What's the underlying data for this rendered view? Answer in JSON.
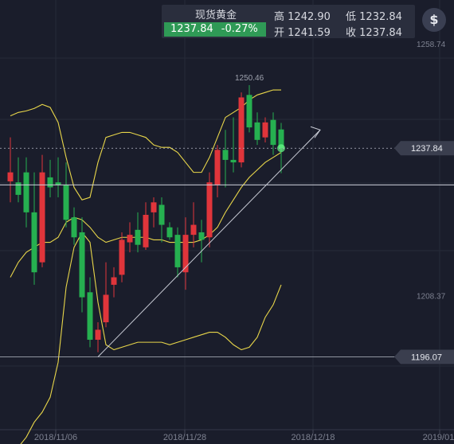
{
  "quote": {
    "name": "现货黄金",
    "price": "1237.84",
    "change": "-0.27%",
    "high_label": "高",
    "high": "1242.90",
    "low_label": "低",
    "low": "1232.84",
    "open_label": "开",
    "open": "1241.59",
    "close_label": "收",
    "close": "1237.84"
  },
  "dollar_icon": "dollar-icon",
  "colors": {
    "up": "#e0353b",
    "down": "#26b050",
    "bollinger": "#e8d64a",
    "background": "#1a1d2b"
  },
  "chart_data": {
    "type": "candlestick",
    "y_axis_ticks": [
      "1258.74",
      "1208.37"
    ],
    "x_axis_ticks": [
      "2018/11/06",
      "2018/11/28",
      "2018/12/18",
      "2019/01/"
    ],
    "ylim": [
      1181.5,
      1267.5
    ],
    "grid": true,
    "horizontal_levels": [
      {
        "value": 1237.84,
        "label": "1237.84"
      },
      {
        "value": 1196.07,
        "label": "1196.07"
      }
    ],
    "reference_line_value": 1230.5,
    "max_annotation": "1250.46",
    "candles": [
      {
        "o": 1231.2,
        "h": 1240.0,
        "l": 1227.0,
        "c": 1233.0
      },
      {
        "o": 1231.0,
        "h": 1236.0,
        "l": 1227.0,
        "c": 1228.5
      },
      {
        "o": 1233.0,
        "h": 1236.0,
        "l": 1222.0,
        "c": 1225.0
      },
      {
        "o": 1225.0,
        "h": 1233.0,
        "l": 1210.5,
        "c": 1213.0
      },
      {
        "o": 1215.0,
        "h": 1236.5,
        "l": 1214.0,
        "c": 1233.0
      },
      {
        "o": 1232.0,
        "h": 1235.5,
        "l": 1228.0,
        "c": 1230.0
      },
      {
        "o": 1231.0,
        "h": 1236.0,
        "l": 1228.0,
        "c": 1230.5
      },
      {
        "o": 1230.5,
        "h": 1235.0,
        "l": 1222.0,
        "c": 1223.5
      },
      {
        "o": 1224.0,
        "h": 1226.0,
        "l": 1218.5,
        "c": 1220.0
      },
      {
        "o": 1221.0,
        "h": 1224.0,
        "l": 1205.0,
        "c": 1208.0
      },
      {
        "o": 1209.0,
        "h": 1212.0,
        "l": 1198.0,
        "c": 1199.5
      },
      {
        "o": 1199.5,
        "h": 1203.0,
        "l": 1197.0,
        "c": 1201.5
      },
      {
        "o": 1203.0,
        "h": 1215.0,
        "l": 1202.0,
        "c": 1208.5
      },
      {
        "o": 1210.5,
        "h": 1214.0,
        "l": 1208.0,
        "c": 1212.0
      },
      {
        "o": 1212.5,
        "h": 1221.0,
        "l": 1211.0,
        "c": 1219.5
      },
      {
        "o": 1219.0,
        "h": 1223.0,
        "l": 1217.0,
        "c": 1220.5
      },
      {
        "o": 1221.5,
        "h": 1225.0,
        "l": 1217.0,
        "c": 1218.5
      },
      {
        "o": 1218.0,
        "h": 1227.0,
        "l": 1217.5,
        "c": 1224.5
      },
      {
        "o": 1225.0,
        "h": 1228.0,
        "l": 1222.0,
        "c": 1227.0
      },
      {
        "o": 1226.5,
        "h": 1228.0,
        "l": 1219.0,
        "c": 1222.5
      },
      {
        "o": 1222.0,
        "h": 1223.0,
        "l": 1219.5,
        "c": 1220.0
      },
      {
        "o": 1220.5,
        "h": 1222.0,
        "l": 1212.0,
        "c": 1214.0
      },
      {
        "o": 1213.0,
        "h": 1224.0,
        "l": 1209.5,
        "c": 1220.5
      },
      {
        "o": 1220.5,
        "h": 1227.0,
        "l": 1218.0,
        "c": 1222.5
      },
      {
        "o": 1221.0,
        "h": 1223.5,
        "l": 1215.0,
        "c": 1219.5
      },
      {
        "o": 1220.0,
        "h": 1233.0,
        "l": 1218.0,
        "c": 1231.0
      },
      {
        "o": 1230.5,
        "h": 1238.5,
        "l": 1228.0,
        "c": 1237.5
      },
      {
        "o": 1237.5,
        "h": 1241.5,
        "l": 1230.0,
        "c": 1235.5
      },
      {
        "o": 1235.5,
        "h": 1244.0,
        "l": 1233.0,
        "c": 1235.0
      },
      {
        "o": 1235.0,
        "h": 1249.0,
        "l": 1234.0,
        "c": 1248.0
      },
      {
        "o": 1248.5,
        "h": 1250.46,
        "l": 1241.0,
        "c": 1242.0
      },
      {
        "o": 1243.0,
        "h": 1245.0,
        "l": 1238.5,
        "c": 1239.5
      },
      {
        "o": 1240.0,
        "h": 1244.0,
        "l": 1239.0,
        "c": 1243.0
      },
      {
        "o": 1243.5,
        "h": 1245.0,
        "l": 1236.5,
        "c": 1238.5
      },
      {
        "o": 1241.59,
        "h": 1242.9,
        "l": 1232.84,
        "c": 1237.84
      }
    ],
    "bollinger": {
      "upper": [
        1244.3,
        1245.0,
        1245.3,
        1245.8,
        1246.6,
        1246.0,
        1243.0,
        1236.0,
        1230.0,
        1227.5,
        1228.0,
        1235.0,
        1240.0,
        1240.5,
        1241.0,
        1241.0,
        1240.5,
        1240.0,
        1238.5,
        1238.0,
        1238.0,
        1237.0,
        1235.0,
        1233.0,
        1233.0,
        1236.0,
        1240.0,
        1244.0,
        1245.0,
        1246.0,
        1247.5,
        1248.5,
        1249.0,
        1249.5,
        1249.5
      ],
      "middle": [
        1212.0,
        1215.0,
        1217.0,
        1218.0,
        1219.0,
        1219.0,
        1220.0,
        1223.0,
        1224.0,
        1223.5,
        1222.0,
        1220.0,
        1219.0,
        1219.5,
        1220.0,
        1220.0,
        1220.0,
        1220.0,
        1219.5,
        1219.5,
        1219.0,
        1219.0,
        1219.0,
        1219.0,
        1219.5,
        1220.5,
        1222.0,
        1225.0,
        1227.5,
        1230.0,
        1232.0,
        1233.5,
        1235.0,
        1236.0,
        1237.0
      ],
      "lower": [
        1175.5,
        1178.0,
        1180.0,
        1183.0,
        1185.0,
        1188.0,
        1195.0,
        1210.0,
        1218.0,
        1221.0,
        1219.0,
        1207.0,
        1198.5,
        1197.5,
        1198.0,
        1198.5,
        1199.0,
        1199.0,
        1199.0,
        1199.0,
        1198.5,
        1199.0,
        1199.5,
        1200.0,
        1200.5,
        1201.0,
        1201.0,
        1200.0,
        1198.5,
        1197.5,
        1198.0,
        1200.0,
        1204.0,
        1206.5,
        1210.5
      ]
    },
    "trend_arrow": {
      "from_value": 1196.07,
      "to_value": 1241.5
    }
  }
}
